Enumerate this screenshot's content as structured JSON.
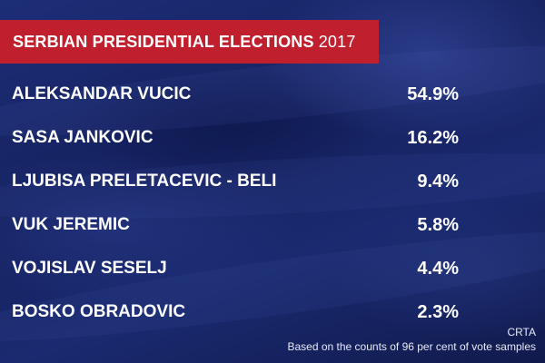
{
  "banner": {
    "title": "SERBIAN PRESIDENTIAL ELECTIONS",
    "year": "2017"
  },
  "candidates": [
    {
      "name": "ALEKSANDAR VUCIC",
      "percent": "54.9%"
    },
    {
      "name": "SASA JANKOVIC",
      "percent": "16.2%"
    },
    {
      "name": "LJUBISA PRELETACEVIC - BELI",
      "percent": "9.4%"
    },
    {
      "name": "VUK JEREMIC",
      "percent": "5.8%"
    },
    {
      "name": "VOJISLAV SESELJ",
      "percent": "4.4%"
    },
    {
      "name": "BOSKO OBRADOVIC",
      "percent": "2.3%"
    }
  ],
  "footer": {
    "source": "CRTA",
    "note": "Based on the counts of 96 per cent of vote samples"
  },
  "colors": {
    "banner": "#c0202e",
    "background": "#1a2a70",
    "text": "#ffffff"
  }
}
